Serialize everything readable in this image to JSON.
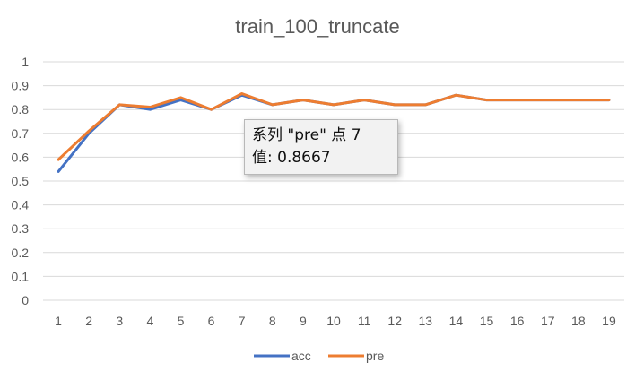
{
  "colors": {
    "acc": "#4472c4",
    "pre": "#ed7d31",
    "grid": "#d9d9d9",
    "text": "#595959"
  },
  "chart_data": {
    "type": "line",
    "title": "train_100_truncate",
    "xlabel": "",
    "ylabel": "",
    "x": [
      1,
      2,
      3,
      4,
      5,
      6,
      7,
      8,
      9,
      10,
      11,
      12,
      13,
      14,
      15,
      16,
      17,
      18,
      19
    ],
    "ylim": [
      0,
      1
    ],
    "yticks": [
      "0",
      "0.1",
      "0.2",
      "0.3",
      "0.4",
      "0.5",
      "0.6",
      "0.7",
      "0.8",
      "0.9",
      "1"
    ],
    "grid": true,
    "legend": "bottom",
    "series": [
      {
        "name": "acc",
        "color": "#4472c4",
        "values": [
          0.54,
          0.7,
          0.82,
          0.8,
          0.84,
          0.8,
          0.86,
          0.82,
          0.84,
          0.82,
          0.84,
          0.82,
          0.82,
          0.86,
          0.84,
          0.84,
          0.84,
          0.84,
          0.84
        ]
      },
      {
        "name": "pre",
        "color": "#ed7d31",
        "values": [
          0.59,
          0.71,
          0.82,
          0.81,
          0.85,
          0.8,
          0.8667,
          0.82,
          0.84,
          0.82,
          0.84,
          0.82,
          0.82,
          0.86,
          0.84,
          0.84,
          0.84,
          0.84,
          0.84
        ]
      }
    ]
  },
  "tooltip": {
    "line1": "系列 \"pre\" 点 7",
    "line2": "值: 0.8667"
  }
}
